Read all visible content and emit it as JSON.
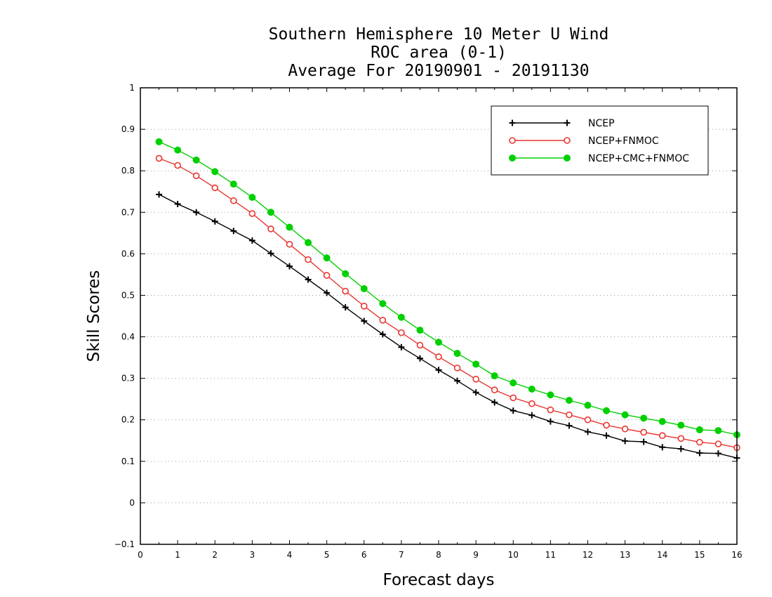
{
  "chart_data": {
    "type": "line",
    "title_lines": [
      "Southern Hemisphere 10 Meter U Wind",
      "ROC area (0-1)",
      "Average For 20190901 - 20191130"
    ],
    "xlabel": "Forecast days",
    "ylabel": "Skill Scores",
    "xlim": [
      0,
      16
    ],
    "ylim": [
      -0.1,
      1
    ],
    "xticks": [
      "0",
      "1",
      "2",
      "3",
      "4",
      "5",
      "6",
      "7",
      "8",
      "9",
      "10",
      "11",
      "12",
      "13",
      "14",
      "15",
      "16"
    ],
    "yticks": [
      "−0.1",
      "0",
      "0.1",
      "0.2",
      "0.3",
      "0.4",
      "0.5",
      "0.6",
      "0.7",
      "0.8",
      "0.9",
      "1"
    ],
    "grid": "horizontal dotted",
    "legend_position": "top-right",
    "x": [
      0.5,
      1,
      1.5,
      2,
      2.5,
      3,
      3.5,
      4,
      4.5,
      5,
      5.5,
      6,
      6.5,
      7,
      7.5,
      8,
      8.5,
      9,
      9.5,
      10,
      10.5,
      11,
      11.5,
      12,
      12.5,
      13,
      13.5,
      14,
      14.5,
      15,
      15.5,
      16
    ],
    "series": [
      {
        "name": "NCEP",
        "color": "#000000",
        "marker": "plus",
        "values": [
          0.743,
          0.72,
          0.7,
          0.678,
          0.655,
          0.632,
          0.601,
          0.57,
          0.538,
          0.506,
          0.471,
          0.438,
          0.406,
          0.375,
          0.348,
          0.32,
          0.294,
          0.266,
          0.242,
          0.222,
          0.211,
          0.196,
          0.186,
          0.171,
          0.162,
          0.149,
          0.147,
          0.134,
          0.13,
          0.12,
          0.119,
          0.108
        ]
      },
      {
        "name": "NCEP+FNMOC",
        "color": "#e8352f",
        "marker": "open-circle",
        "values": [
          0.83,
          0.813,
          0.788,
          0.759,
          0.728,
          0.697,
          0.66,
          0.623,
          0.586,
          0.548,
          0.51,
          0.474,
          0.44,
          0.41,
          0.38,
          0.352,
          0.325,
          0.298,
          0.272,
          0.253,
          0.239,
          0.224,
          0.212,
          0.2,
          0.187,
          0.178,
          0.17,
          0.162,
          0.155,
          0.146,
          0.142,
          0.133
        ]
      },
      {
        "name": "NCEP+CMC+FNMOC",
        "color": "#00d000",
        "marker": "filled-circle",
        "values": [
          0.87,
          0.85,
          0.826,
          0.798,
          0.768,
          0.736,
          0.7,
          0.664,
          0.627,
          0.59,
          0.552,
          0.516,
          0.48,
          0.447,
          0.416,
          0.387,
          0.36,
          0.334,
          0.306,
          0.289,
          0.274,
          0.26,
          0.247,
          0.235,
          0.222,
          0.212,
          0.204,
          0.196,
          0.187,
          0.176,
          0.174,
          0.164
        ]
      }
    ]
  }
}
